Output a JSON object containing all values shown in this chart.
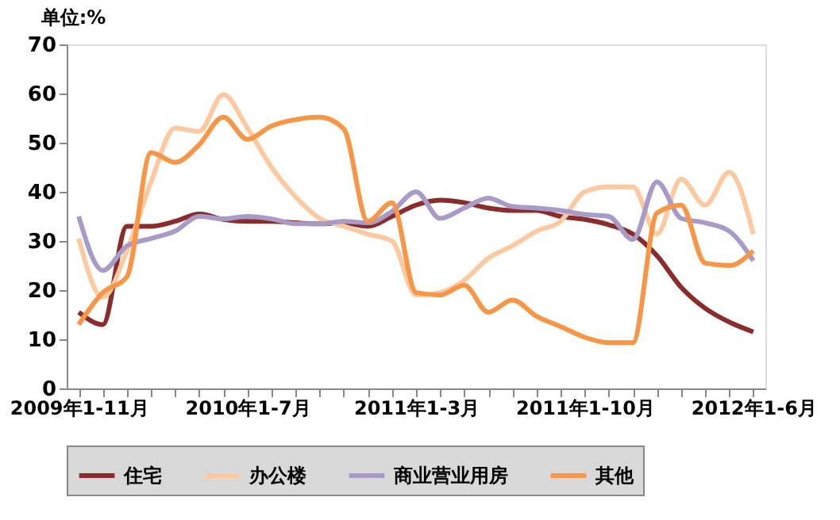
{
  "chart_data": {
    "type": "line",
    "ylabel": "单位:%",
    "categories": [
      "2009年1-11月",
      null,
      null,
      null,
      null,
      null,
      null,
      "2010年1-7月",
      null,
      null,
      null,
      null,
      null,
      null,
      "2011年1-3月",
      null,
      null,
      null,
      null,
      null,
      null,
      "2011年1-10月",
      null,
      null,
      null,
      null,
      null,
      null,
      "2012年1-6月"
    ],
    "series": [
      {
        "name": "住宅",
        "color": "#8b2c2c",
        "values": [
          15.5,
          13,
          33,
          33,
          34,
          35.5,
          34.4,
          34,
          34,
          33.7,
          33.5,
          33.7,
          33,
          35,
          37.3,
          38.3,
          37.8,
          36.7,
          36.2,
          36.2,
          35,
          34.4,
          33.3,
          31.4,
          27,
          20.6,
          16.3,
          13.5,
          11.5
        ]
      },
      {
        "name": "办公楼",
        "color": "#fcc9a0",
        "values": [
          30.5,
          18.5,
          28,
          42,
          53,
          52.3,
          59.8,
          53,
          45,
          39,
          34.6,
          33,
          31.4,
          30,
          19,
          19.5,
          22,
          26.5,
          29,
          32,
          34,
          40,
          41,
          41,
          31.4,
          42.6,
          37.3,
          44,
          31.4
        ]
      },
      {
        "name": "商业营业用房",
        "color": "#a99bc8",
        "values": [
          35,
          24,
          29,
          30.5,
          32,
          35,
          34.5,
          35,
          34.5,
          33.5,
          33.5,
          34,
          33.7,
          36,
          40,
          34.6,
          36.7,
          38.7,
          37,
          36.7,
          36.2,
          35.4,
          35,
          30.3,
          42,
          34.6,
          33.7,
          32,
          26
        ]
      },
      {
        "name": "其他",
        "color": "#f79646",
        "values": [
          13,
          19.5,
          22.7,
          48,
          46,
          49.6,
          55.2,
          50.7,
          53.4,
          54.7,
          55.2,
          52.8,
          34,
          37.8,
          19.5,
          19,
          21,
          15.5,
          18,
          14.7,
          12.6,
          10.4,
          9.3,
          9.3,
          35.7,
          37.3,
          25.5,
          25,
          28
        ]
      }
    ],
    "ylim": [
      0,
      70
    ],
    "yticks": [
      0,
      10,
      20,
      30,
      40,
      50,
      60,
      70
    ],
    "grid": false,
    "legend": "bottom",
    "marker": "none",
    "line_style": "solid"
  }
}
